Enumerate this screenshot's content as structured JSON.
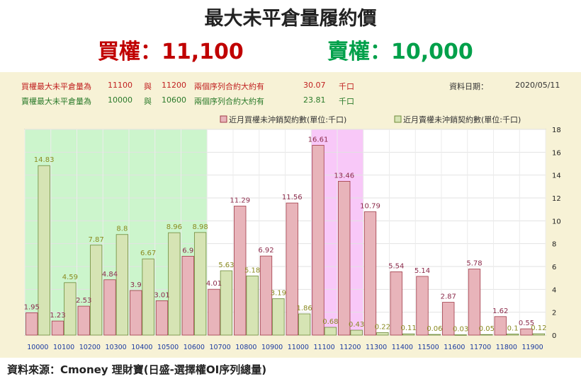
{
  "header": {
    "title": "最大未平倉量履約價",
    "call_label": "買權：11,100",
    "put_label": "賣權：10,000"
  },
  "info": {
    "call_row": {
      "prefix": "買權最大未平倉量為",
      "strike1": "11100",
      "conj": "與",
      "strike2": "11200",
      "desc": "兩個序列合約大約有",
      "value": "30.07",
      "unit": "千口"
    },
    "put_row": {
      "prefix": "賣權最大未平倉量為",
      "strike1": "10000",
      "conj": "與",
      "strike2": "10600",
      "desc": "兩個序列合約大約有",
      "value": "23.81",
      "unit": "千口"
    },
    "date_label": "資料日期：",
    "date_value": "2020/05/11"
  },
  "footer": {
    "source": "資料來源：Cmoney 理財寶(日盛-選擇權OI序列總量)"
  },
  "colors": {
    "call_fill": "#e8b4ba",
    "call_stroke": "#a03a48",
    "call_label": "#8b2a4a",
    "put_fill": "#d6e4b4",
    "put_stroke": "#6e8a3a",
    "put_label": "#8a8a20",
    "green_region": "#ccf5cc",
    "pink_region": "#f8c8f8",
    "panel": "#f7f2d6",
    "tick": "#1a3aa0"
  },
  "chart_data": {
    "type": "bar",
    "categories": [
      "10000",
      "10100",
      "10200",
      "10300",
      "10400",
      "10500",
      "10600",
      "10700",
      "10800",
      "10900",
      "11000",
      "11100",
      "11200",
      "11300",
      "11400",
      "11500",
      "11600",
      "11700",
      "11800",
      "11900"
    ],
    "series": [
      {
        "name": "近月買權未沖銷契約數(單位:千口)",
        "values": [
          1.95,
          1.23,
          2.53,
          4.84,
          3.9,
          3.01,
          6.9,
          4.01,
          11.29,
          6.92,
          11.56,
          16.61,
          13.46,
          10.79,
          5.54,
          5.14,
          2.87,
          5.78,
          1.62,
          0.55
        ]
      },
      {
        "name": "近月賣權未沖銷契約數(單位:千口)",
        "values": [
          14.83,
          4.59,
          7.87,
          8.8,
          6.67,
          8.96,
          8.98,
          5.63,
          5.18,
          3.19,
          1.86,
          0.68,
          0.43,
          0.22,
          0.11,
          0.06,
          0.03,
          0.05,
          0.1,
          0.12
        ]
      }
    ],
    "value_labels": [
      [
        "1.95",
        "1.23",
        "2.53",
        "4.84",
        "3.9",
        "3.01",
        "6.9",
        "4.01",
        "11.29",
        "6.92",
        "11.56",
        "16.61",
        "13.46",
        "10.79",
        "5.54",
        "5.14",
        "2.87",
        "5.78",
        "1.62",
        "0.55"
      ],
      [
        "14.83",
        "4.59",
        "7.87",
        "8.8",
        "6.67",
        "8.96",
        "8.98",
        "5.63",
        "5.18",
        "3.19",
        "1.86",
        "0.68",
        "0.43",
        "0.22",
        "0.11",
        "0.06",
        "0.03",
        "0.05",
        "0.1",
        "0.12"
      ]
    ],
    "yticks": [
      "0",
      "2",
      "4",
      "6",
      "8",
      "10",
      "12",
      "14",
      "16",
      "18"
    ],
    "ylim": [
      0,
      18
    ],
    "y_axis_side": "right",
    "legend_placement": "top-center",
    "highlight_put": [
      "10000",
      "10600"
    ],
    "highlight_call": [
      "11100",
      "11200"
    ],
    "grid": true
  }
}
